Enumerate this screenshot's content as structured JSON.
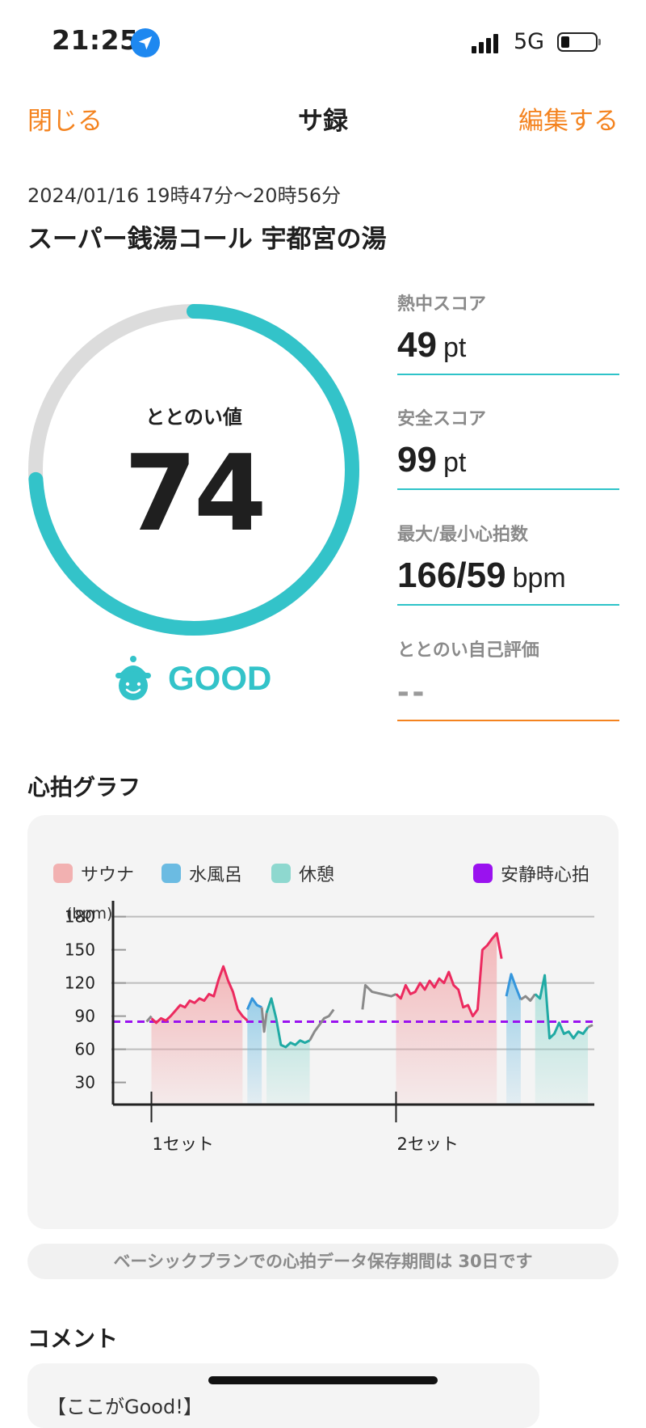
{
  "status_bar": {
    "time": "21:25",
    "network": "5G",
    "battery_level": 0.2
  },
  "nav": {
    "close_label": "閉じる",
    "title": "サ録",
    "edit_label": "編集する"
  },
  "session": {
    "datetime": "2024/01/16 19時47分〜20時56分",
    "place": "スーパー銭湯コール 宇都宮の湯"
  },
  "gauge": {
    "label": "ととのい値",
    "value": "74",
    "progress": 0.74,
    "rating": "GOOD"
  },
  "metrics": [
    {
      "label": "熱中スコア",
      "value": "49",
      "unit": "pt"
    },
    {
      "label": "安全スコア",
      "value": "99",
      "unit": "pt"
    },
    {
      "label": "最大/最小心拍数",
      "value": "166/59",
      "unit": "bpm"
    },
    {
      "label": "ととのい自己評価",
      "value": "--",
      "unit": ""
    }
  ],
  "chart_section_title": "心拍グラフ",
  "legend": [
    {
      "label": "サウナ",
      "color": "#f2b1b1"
    },
    {
      "label": "水風呂",
      "color": "#6bbbe2"
    },
    {
      "label": "休憩",
      "color": "#8ed8cf"
    },
    {
      "label": "安静時心拍",
      "color": "#9a12ef"
    }
  ],
  "chart_data": {
    "type": "line",
    "y_unit_label": "(bpm)",
    "yticks": [
      180,
      150,
      120,
      90,
      60,
      30
    ],
    "ylim": [
      10,
      190
    ],
    "xlim": [
      0,
      100
    ],
    "x_labels": [
      {
        "x": 8,
        "label": "1セット"
      },
      {
        "x": 59,
        "label": "2セット"
      }
    ],
    "resting_hr": 85,
    "gridlines": [
      180,
      120,
      60
    ],
    "phases": [
      {
        "type": "sauna",
        "x0": 8,
        "x1": 27
      },
      {
        "type": "cold",
        "x0": 28,
        "x1": 31
      },
      {
        "type": "rest",
        "x0": 32,
        "x1": 41
      },
      {
        "type": "sauna",
        "x0": 59,
        "x1": 80
      },
      {
        "type": "cold",
        "x0": 82,
        "x1": 85
      },
      {
        "type": "rest",
        "x0": 88,
        "x1": 99
      }
    ],
    "series": [
      {
        "phase": "other",
        "points": [
          [
            7,
            85
          ],
          [
            8,
            90
          ]
        ]
      },
      {
        "phase": "sauna",
        "points": [
          [
            8,
            88
          ],
          [
            9,
            84
          ],
          [
            10,
            88
          ],
          [
            11,
            86
          ],
          [
            12,
            90
          ],
          [
            13,
            95
          ],
          [
            14,
            100
          ],
          [
            15,
            98
          ],
          [
            16,
            104
          ],
          [
            17,
            102
          ],
          [
            18,
            106
          ],
          [
            19,
            104
          ],
          [
            20,
            110
          ],
          [
            21,
            108
          ],
          [
            22,
            123
          ],
          [
            23,
            135
          ],
          [
            24,
            122
          ],
          [
            25,
            112
          ],
          [
            26,
            96
          ],
          [
            27,
            90
          ],
          [
            28,
            86
          ]
        ]
      },
      {
        "phase": "cold",
        "points": [
          [
            28,
            96
          ],
          [
            29,
            106
          ],
          [
            30,
            100
          ],
          [
            31,
            98
          ]
        ]
      },
      {
        "phase": "other",
        "points": [
          [
            31,
            98
          ],
          [
            31.5,
            76
          ],
          [
            32,
            93
          ]
        ]
      },
      {
        "phase": "rest",
        "points": [
          [
            32,
            93
          ],
          [
            33,
            106
          ],
          [
            34,
            88
          ],
          [
            35,
            64
          ],
          [
            36,
            62
          ],
          [
            37,
            66
          ],
          [
            38,
            64
          ],
          [
            39,
            68
          ],
          [
            40,
            66
          ],
          [
            41,
            68
          ]
        ]
      },
      {
        "phase": "other",
        "points": [
          [
            41,
            68
          ],
          [
            42,
            76
          ],
          [
            43,
            82
          ],
          [
            44,
            88
          ],
          [
            45,
            90
          ],
          [
            46,
            96
          ]
        ]
      },
      {
        "phase": "other",
        "points": [
          [
            52,
            96
          ],
          [
            52.6,
            118
          ],
          [
            54,
            112
          ],
          [
            56,
            110
          ],
          [
            58,
            108
          ],
          [
            59,
            110
          ]
        ]
      },
      {
        "phase": "sauna",
        "points": [
          [
            59,
            110
          ],
          [
            60,
            106
          ],
          [
            61,
            118
          ],
          [
            62,
            110
          ],
          [
            63,
            112
          ],
          [
            64,
            120
          ],
          [
            65,
            114
          ],
          [
            66,
            122
          ],
          [
            67,
            116
          ],
          [
            68,
            124
          ],
          [
            69,
            120
          ],
          [
            70,
            130
          ],
          [
            71,
            118
          ],
          [
            72,
            114
          ],
          [
            73,
            98
          ],
          [
            74,
            100
          ],
          [
            75,
            90
          ],
          [
            76,
            96
          ],
          [
            77,
            150
          ],
          [
            78,
            154
          ],
          [
            79,
            160
          ],
          [
            80,
            165
          ],
          [
            81,
            142
          ]
        ]
      },
      {
        "phase": "cold",
        "points": [
          [
            82,
            108
          ],
          [
            83,
            128
          ],
          [
            84,
            116
          ],
          [
            85,
            105
          ]
        ]
      },
      {
        "phase": "other",
        "points": [
          [
            85,
            105
          ],
          [
            86,
            108
          ],
          [
            87,
            104
          ],
          [
            88,
            110
          ]
        ]
      },
      {
        "phase": "rest",
        "points": [
          [
            88,
            110
          ],
          [
            89,
            106
          ],
          [
            90,
            127
          ],
          [
            91,
            70
          ],
          [
            92,
            74
          ],
          [
            93,
            84
          ],
          [
            94,
            74
          ],
          [
            95,
            76
          ],
          [
            96,
            70
          ],
          [
            97,
            76
          ],
          [
            98,
            74
          ],
          [
            99,
            80
          ]
        ]
      },
      {
        "phase": "other",
        "points": [
          [
            99,
            80
          ],
          [
            100,
            82
          ]
        ]
      }
    ]
  },
  "notice": "ベーシックプランでの心拍データ保存期間は 30日です",
  "comment_section_title": "コメント",
  "comment_preview": "【ここがGood!】"
}
